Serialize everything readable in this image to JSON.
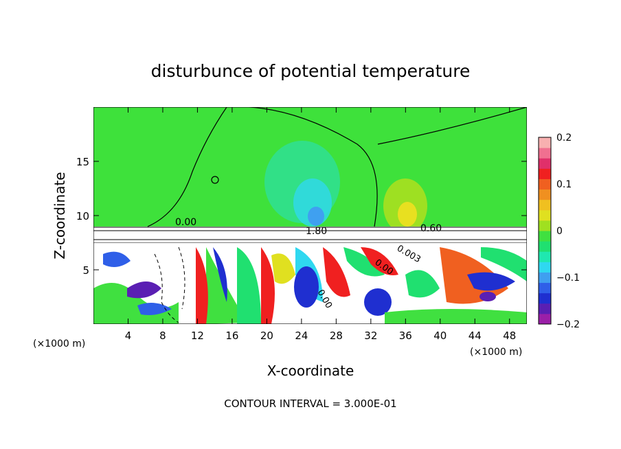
{
  "chart_data": {
    "type": "heatmap",
    "title": "disturbunce of potential temperature",
    "xlabel": "X-coordinate",
    "ylabel": "Z-coordinate",
    "x_unit_left": "(×1000 m)",
    "x_unit_right": "(×1000 m)",
    "xlim": [
      0,
      50
    ],
    "ylim": [
      0,
      20
    ],
    "x_ticks": [
      4,
      8,
      12,
      16,
      20,
      24,
      28,
      32,
      36,
      40,
      44,
      48
    ],
    "x_tick_labels": [
      "4",
      "8",
      "12",
      "16",
      "20",
      "24",
      "28",
      "32",
      "36",
      "40",
      "44",
      "48"
    ],
    "y_ticks": [
      5,
      10,
      15
    ],
    "y_tick_labels": [
      "5",
      "10",
      "15"
    ],
    "colorbar": {
      "range": [
        -0.2,
        0.2
      ],
      "ticks": [
        0.2,
        0.1,
        0,
        -0.1,
        -0.2
      ],
      "tick_labels": [
        "0.2",
        "0.1",
        "0",
        "−0.1",
        "−0.2"
      ],
      "colors": [
        "#9b1fa8",
        "#5a1fb3",
        "#1f2fd0",
        "#2f5fe8",
        "#3f9ff0",
        "#2fd8f0",
        "#1fe8b0",
        "#20e070",
        "#40e040",
        "#a0e020",
        "#e0e020",
        "#f0c020",
        "#f09020",
        "#f06020",
        "#f02020",
        "#e0306a",
        "#f07090",
        "#f8b0b0"
      ]
    },
    "contour_labels": [
      "0.00",
      "0.60",
      "1.80",
      "0.00",
      "0.003",
      "0.00"
    ],
    "footer": "CONTOUR INTERVAL = 3.000E-01",
    "grid": false
  },
  "colors": {
    "background_field": "#3ee13b"
  }
}
